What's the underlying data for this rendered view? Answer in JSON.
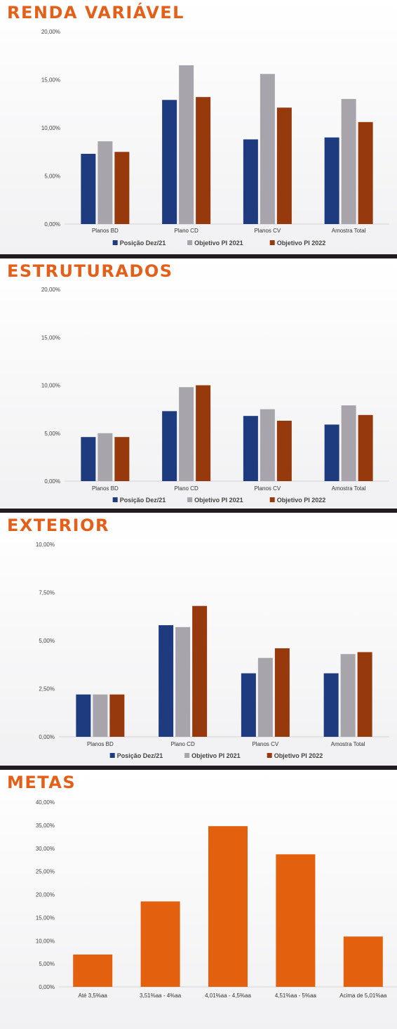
{
  "colors": {
    "series": [
      "#1f3b7f",
      "#a7a5ab",
      "#963a0e"
    ],
    "metas": "#e2600e",
    "title": "#e2601a"
  },
  "chart_data": [
    {
      "type": "bar",
      "title": "RENDA VARIÁVEL",
      "categories": [
        "Planos BD",
        "Plano CD",
        "Planos CV",
        "Amostra Total"
      ],
      "series": [
        {
          "name": "Posição Dez/21",
          "values": [
            7.3,
            12.9,
            8.8,
            9.0
          ]
        },
        {
          "name": "Objetivo PI 2021",
          "values": [
            8.6,
            16.5,
            15.6,
            13.0
          ]
        },
        {
          "name": "Objetivo PI 2022",
          "values": [
            7.5,
            13.2,
            12.1,
            10.6
          ]
        }
      ],
      "ylim": [
        0,
        20
      ],
      "yticks": [
        "0,00%",
        "5,00%",
        "10,00%",
        "15,00%",
        "20,00%"
      ],
      "legend": "bottom"
    },
    {
      "type": "bar",
      "title": "ESTRUTURADOS",
      "categories": [
        "Planos BD",
        "Plano CD",
        "Planos CV",
        "Amostra Total"
      ],
      "series": [
        {
          "name": "Posição Dez/21",
          "values": [
            4.6,
            7.3,
            6.8,
            5.9
          ]
        },
        {
          "name": "Objetivo PI 2021",
          "values": [
            5.0,
            9.8,
            7.5,
            7.9
          ]
        },
        {
          "name": "Objetivo PI 2022",
          "values": [
            4.6,
            10.0,
            6.3,
            6.9
          ]
        }
      ],
      "ylim": [
        0,
        20
      ],
      "yticks": [
        "0,00%",
        "5,00%",
        "10,00%",
        "15,00%",
        "20,00%"
      ],
      "legend": "bottom"
    },
    {
      "type": "bar",
      "title": "EXTERIOR",
      "categories": [
        "Planos BD",
        "Plano CD",
        "Planos CV",
        "Amostra Total"
      ],
      "series": [
        {
          "name": "Posição Dez/21",
          "values": [
            2.2,
            5.8,
            3.3,
            3.3
          ]
        },
        {
          "name": "Objetivo PI 2021",
          "values": [
            2.2,
            5.7,
            4.1,
            4.3
          ]
        },
        {
          "name": "Objetivo PI 2022",
          "values": [
            2.2,
            6.8,
            4.6,
            4.4
          ]
        }
      ],
      "ylim": [
        0,
        10
      ],
      "yticks": [
        "0,00%",
        "2,50%",
        "5,00%",
        "7,50%",
        "10,00%"
      ],
      "legend": "bottom"
    },
    {
      "type": "bar",
      "title": "METAS",
      "categories": [
        "Até 3,5%aa",
        "3,51%aa - 4%aa",
        "4,01%aa - 4,5%aa",
        "4,51%aa - 5%aa",
        "Acima de 5,01%aa"
      ],
      "series": [
        {
          "values": [
            7.0,
            18.5,
            34.8,
            28.7,
            10.9
          ]
        }
      ],
      "ylim": [
        0,
        40
      ],
      "yticks": [
        "0,00%",
        "5,00%",
        "10,00%",
        "15,00%",
        "20,00%",
        "25,00%",
        "30,00%",
        "35,00%",
        "40,00%"
      ]
    }
  ]
}
